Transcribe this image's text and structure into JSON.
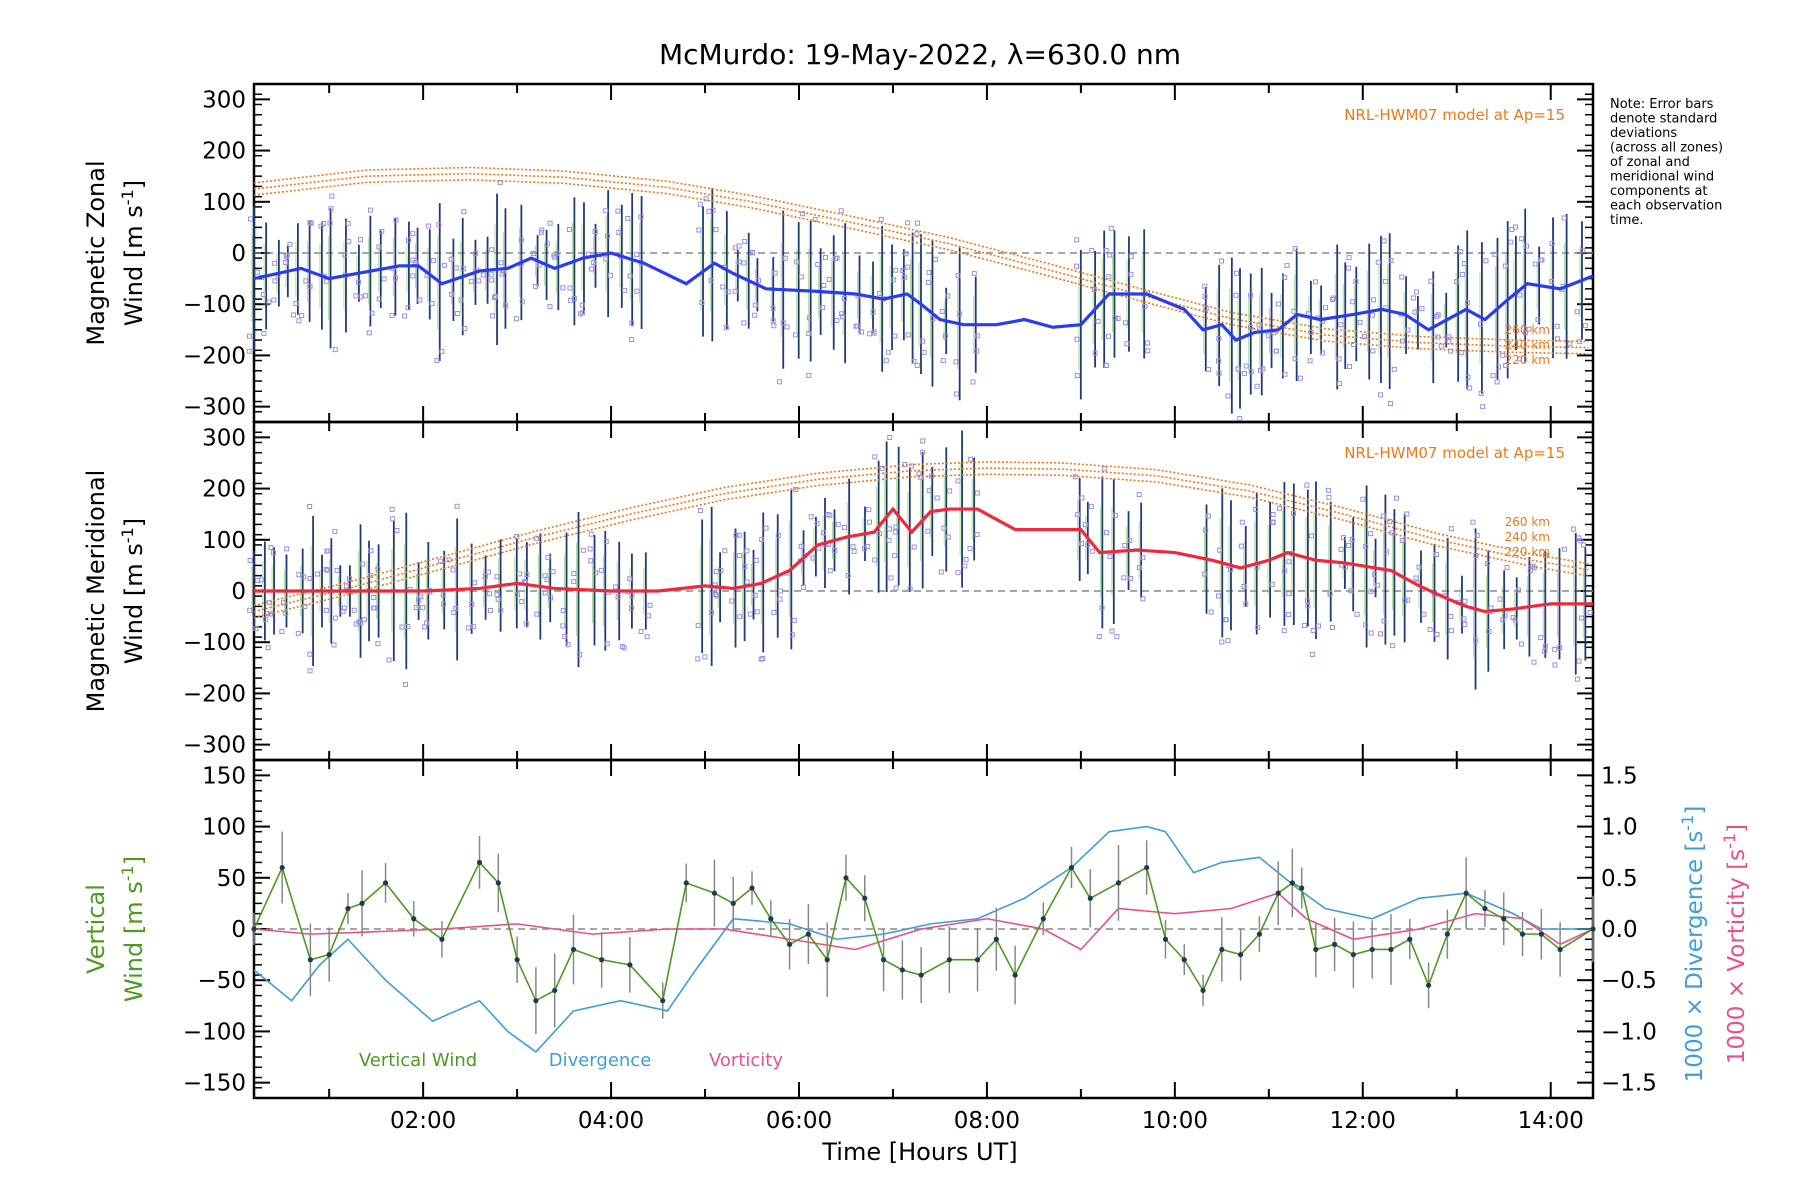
{
  "title": "McMurdo: 19-May-2022, λ=630.0 nm",
  "note_lines": [
    "Note: Error bars",
    "denote standard",
    "deviations",
    "(across all zones)",
    "of zonal and",
    "meridional wind",
    "components at",
    "each observation",
    "time."
  ],
  "x_ticks": [
    "02:00",
    "04:00",
    "06:00",
    "08:00",
    "10:00",
    "12:00",
    "14:00"
  ],
  "xlabel": "Time [Hours UT]",
  "colors": {
    "zonal": "#2a3cf0",
    "meridional": "#f0283c",
    "model": "#f07814",
    "vertical": "#4c9b1e",
    "divergence": "#3c9ed8",
    "vorticity": "#e8508a",
    "errorbar": "#1e3c78",
    "scatter": "#9b8fe0",
    "grid": "#888888"
  },
  "chart_data": [
    {
      "type": "line",
      "panel": "zonal",
      "ylabel_line1": "Magnetic Zonal",
      "ylabel_line2": "Wind [m s",
      "ylabel_sup": "-1",
      "ylabel_close": "]",
      "y_ticks": [
        "300",
        "200",
        "100",
        "0",
        "−100",
        "−200",
        "−300"
      ],
      "ylim": [
        -330,
        330
      ],
      "xlim": [
        0.2,
        14.45
      ],
      "model_label": "NRL-HWM07 model at Ap=15",
      "model_alt_labels": [
        "260 km",
        "240 km",
        "220 km"
      ],
      "series": [
        {
          "x": [
            0.2,
            0.7,
            1.0,
            1.3,
            1.75,
            1.95,
            2.2,
            2.6,
            2.9,
            3.15,
            3.4,
            3.7,
            4.0,
            4.35,
            4.8,
            5.1,
            5.3,
            5.65,
            6.2,
            6.6,
            6.9,
            7.15,
            7.3,
            7.5,
            7.75,
            8.1,
            8.4,
            8.7,
            9.0,
            9.3,
            9.7,
            10.1,
            10.3,
            10.5,
            10.65,
            10.85,
            11.1,
            11.3,
            11.55,
            11.9,
            12.2,
            12.45,
            12.7,
            12.9,
            13.1,
            13.3,
            13.55,
            13.75,
            14.1,
            14.45
          ],
          "values": [
            -50,
            -30,
            -50,
            -40,
            -25,
            -25,
            -60,
            -35,
            -30,
            -10,
            -30,
            -10,
            0,
            -20,
            -60,
            -20,
            -40,
            -70,
            -75,
            -80,
            -90,
            -80,
            -100,
            -130,
            -140,
            -140,
            -130,
            -145,
            -140,
            -80,
            -80,
            -110,
            -150,
            -140,
            -170,
            -155,
            -150,
            -120,
            -130,
            -120,
            -110,
            -120,
            -150,
            -130,
            -110,
            -130,
            -90,
            -60,
            -70,
            -45
          ]
        }
      ],
      "model_x": [
        0.2,
        1.4,
        2.5,
        3.5,
        4.6,
        5.5,
        6.6,
        7.6,
        8.6,
        9.6,
        10.6,
        11.6,
        12.6,
        13.6,
        14.45
      ],
      "model_values": [
        125,
        150,
        155,
        148,
        128,
        100,
        58,
        18,
        -30,
        -80,
        -128,
        -160,
        -175,
        -182,
        -185
      ]
    },
    {
      "type": "line",
      "panel": "meridional",
      "ylabel_line1": "Magnetic Meridional",
      "ylabel_line2": "Wind [m s",
      "ylabel_sup": "-1",
      "ylabel_close": "]",
      "y_ticks": [
        "300",
        "200",
        "100",
        "0",
        "−100",
        "−200",
        "−300"
      ],
      "ylim": [
        -330,
        330
      ],
      "xlim": [
        0.2,
        14.45
      ],
      "model_label": "NRL-HWM07 model at Ap=15",
      "model_alt_labels": [
        "260 km",
        "240 km",
        "220 km"
      ],
      "series": [
        {
          "x": [
            0.2,
            1.0,
            2.0,
            2.6,
            3.0,
            3.4,
            4.0,
            4.5,
            5.0,
            5.3,
            5.6,
            5.9,
            6.2,
            6.5,
            6.8,
            7.0,
            7.2,
            7.4,
            7.6,
            7.9,
            8.3,
            9.0,
            9.2,
            9.6,
            10.0,
            10.4,
            10.7,
            11.0,
            11.2,
            11.5,
            11.8,
            12.3,
            12.6,
            12.9,
            13.1,
            13.3,
            13.6,
            14.0,
            14.45
          ],
          "values": [
            0,
            0,
            0,
            5,
            15,
            5,
            0,
            0,
            10,
            5,
            15,
            40,
            90,
            105,
            115,
            160,
            115,
            155,
            160,
            160,
            120,
            120,
            75,
            80,
            75,
            60,
            45,
            60,
            75,
            60,
            55,
            40,
            10,
            -15,
            -30,
            -40,
            -35,
            -25,
            -25
          ]
        }
      ],
      "model_x": [
        0.2,
        1.2,
        2.2,
        3.2,
        4.2,
        5.2,
        6.2,
        7.2,
        8.0,
        8.8,
        9.8,
        10.8,
        11.8,
        12.8,
        13.8,
        14.45
      ],
      "model_values": [
        -40,
        5,
        55,
        105,
        150,
        190,
        218,
        235,
        240,
        238,
        225,
        195,
        150,
        100,
        60,
        40
      ]
    },
    {
      "type": "line",
      "panel": "vertical",
      "ylabel_left_line1": "Vertical",
      "ylabel_left_line2": "Wind [m s",
      "ylabel_sup": "-1",
      "ylabel_close": "]",
      "ylabel_right1": "1000 × Divergence [s",
      "ylabel_right2": "1000 × Vorticity [s",
      "y_ticks": [
        "150",
        "100",
        "50",
        "0",
        "−50",
        "−100",
        "−150"
      ],
      "y2_ticks": [
        "1.5",
        "1.0",
        "0.5",
        "0.0",
        "−0.5",
        "−1.0",
        "−1.5"
      ],
      "ylim": [
        -165,
        165
      ],
      "y2lim": [
        -1.5,
        1.5
      ],
      "xlim": [
        0.2,
        14.45
      ],
      "legend": [
        "Vertical Wind",
        "Divergence",
        "Vorticity"
      ],
      "series": [
        {
          "name": "Vertical Wind",
          "x": [
            0.2,
            0.5,
            0.8,
            1.0,
            1.2,
            1.35,
            1.6,
            1.9,
            2.2,
            2.6,
            2.8,
            3.0,
            3.2,
            3.4,
            3.6,
            3.9,
            4.2,
            4.55,
            4.8,
            5.1,
            5.3,
            5.5,
            5.7,
            5.9,
            6.1,
            6.3,
            6.5,
            6.7,
            6.9,
            7.1,
            7.3,
            7.6,
            7.9,
            8.1,
            8.3,
            8.6,
            8.9,
            9.1,
            9.4,
            9.7,
            9.9,
            10.1,
            10.3,
            10.5,
            10.7,
            10.9,
            11.1,
            11.25,
            11.35,
            11.5,
            11.7,
            11.9,
            12.1,
            12.3,
            12.5,
            12.7,
            12.9,
            13.1,
            13.3,
            13.5,
            13.7,
            13.9,
            14.1,
            14.45
          ],
          "values": [
            0,
            60,
            -30,
            -25,
            20,
            25,
            45,
            10,
            -10,
            65,
            45,
            -30,
            -70,
            -60,
            -20,
            -30,
            -35,
            -70,
            45,
            35,
            25,
            40,
            10,
            -15,
            -5,
            -30,
            50,
            30,
            -30,
            -40,
            -45,
            -30,
            -30,
            -10,
            -45,
            10,
            60,
            30,
            45,
            60,
            -10,
            -30,
            -60,
            -20,
            -25,
            -5,
            35,
            45,
            40,
            -20,
            -15,
            -25,
            -20,
            -20,
            -10,
            -55,
            -5,
            35,
            20,
            10,
            -5,
            -5,
            -20,
            0
          ]
        },
        {
          "name": "Divergence",
          "x": [
            0.2,
            0.6,
            0.9,
            1.2,
            1.6,
            2.1,
            2.6,
            2.9,
            3.2,
            3.6,
            4.1,
            4.6,
            4.9,
            5.3,
            5.9,
            6.4,
            6.9,
            7.4,
            7.9,
            8.4,
            8.9,
            9.3,
            9.7,
            9.9,
            10.2,
            10.5,
            10.9,
            11.3,
            11.6,
            12.1,
            12.6,
            13.1,
            13.6,
            13.9,
            14.2,
            14.45
          ],
          "values": [
            -0.4,
            -0.7,
            -0.35,
            -0.1,
            -0.5,
            -0.9,
            -0.7,
            -1.0,
            -1.2,
            -0.8,
            -0.7,
            -0.8,
            -0.4,
            0.1,
            0.05,
            -0.1,
            -0.05,
            0.05,
            0.1,
            0.3,
            0.6,
            0.95,
            1.0,
            0.95,
            0.55,
            0.65,
            0.7,
            0.4,
            0.2,
            0.1,
            0.3,
            0.35,
            0.15,
            0.0,
            0.0,
            0.0
          ]
        },
        {
          "name": "Vorticity",
          "x": [
            0.2,
            0.8,
            1.4,
            2.2,
            3.0,
            3.8,
            4.6,
            5.2,
            5.9,
            6.6,
            7.3,
            8.0,
            8.6,
            9.0,
            9.4,
            10.0,
            10.6,
            11.1,
            11.4,
            11.9,
            12.6,
            13.2,
            13.7,
            14.1,
            14.45
          ],
          "values": [
            0.0,
            -0.05,
            -0.03,
            0.0,
            0.05,
            -0.05,
            0.0,
            0.0,
            -0.1,
            -0.2,
            0.0,
            0.1,
            0.0,
            -0.2,
            0.2,
            0.15,
            0.2,
            0.35,
            0.1,
            -0.1,
            0.0,
            0.15,
            0.1,
            -0.15,
            0.0
          ]
        }
      ]
    }
  ]
}
